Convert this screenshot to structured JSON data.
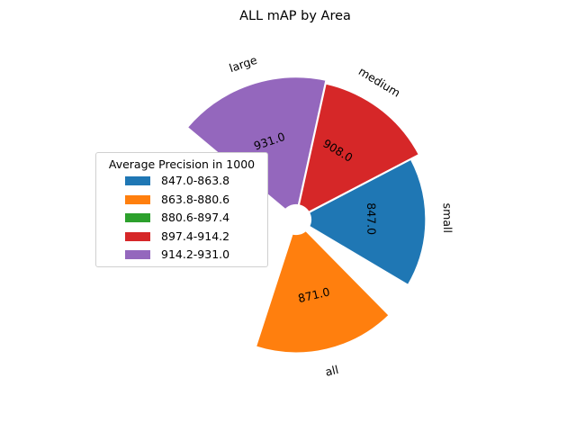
{
  "chart_data": {
    "type": "polar-bar",
    "title": "ALL mAP by Area",
    "categories": [
      "all",
      "small",
      "medium",
      "large"
    ],
    "values": [
      871.0,
      847.0,
      908.0,
      931.0
    ],
    "value_labels": [
      "871.0",
      "847.0",
      "908.0",
      "931.0"
    ],
    "colors": [
      "#ff7f0e",
      "#1f77b4",
      "#d62728",
      "#9467bd"
    ],
    "legend": {
      "title": "Average Precision in 1000",
      "placement": "center-left",
      "entries": [
        {
          "label": "847.0-863.8",
          "color": "#1f77b4"
        },
        {
          "label": "863.8-880.6",
          "color": "#ff7f0e"
        },
        {
          "label": "880.6-897.4",
          "color": "#2ca02c"
        },
        {
          "label": "897.4-914.2",
          "color": "#d62728"
        },
        {
          "label": "914.2-931.0",
          "color": "#9467bd"
        }
      ]
    }
  }
}
